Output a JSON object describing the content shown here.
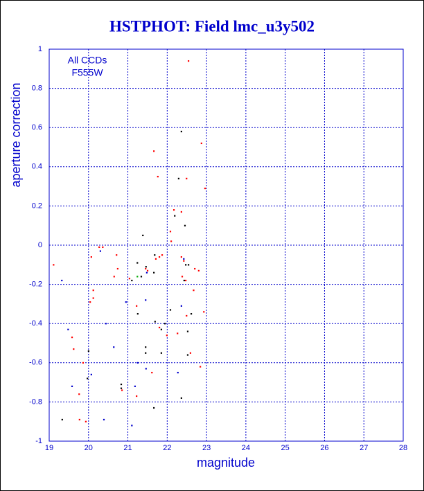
{
  "chart_data": {
    "type": "scatter",
    "title": "HSTPHOT: Field lmc_u3y502",
    "x_label": "magnitude",
    "y_label": "aperture correction",
    "annotations": [
      "All CCDs",
      "F555W"
    ],
    "xlim": [
      19,
      28
    ],
    "ylim": [
      -1,
      1
    ],
    "xticks": [
      19,
      20,
      21,
      22,
      23,
      24,
      25,
      26,
      27,
      28
    ],
    "yticks": [
      -1,
      -0.8,
      -0.6,
      -0.4,
      -0.2,
      0,
      0.2,
      0.4,
      0.6,
      0.8,
      1
    ],
    "grid": true,
    "series": [
      {
        "color": "#000000",
        "x": [
          22.36,
          22.29,
          22.19,
          21.38,
          22.45,
          21.24,
          21.46,
          21.68,
          21.66,
          22.47,
          22.54,
          22.43,
          21.34,
          21.1,
          22.08,
          22.61,
          21.25,
          21.69,
          21.94,
          21.85,
          22.52,
          21.45,
          20.0,
          21.45,
          21.85,
          22.52,
          19.97,
          20.83,
          20.83,
          22.36,
          21.66,
          19.33
        ],
        "y": [
          0.58,
          0.34,
          0.15,
          0.05,
          0.1,
          -0.09,
          -0.11,
          -0.05,
          -0.14,
          -0.1,
          -0.1,
          -0.18,
          -0.16,
          -0.18,
          -0.33,
          -0.35,
          -0.35,
          -0.39,
          -0.4,
          -0.43,
          -0.44,
          -0.52,
          -0.54,
          -0.55,
          -0.55,
          -0.56,
          -0.68,
          -0.71,
          -0.73,
          -0.78,
          -0.83,
          -0.89
        ]
      },
      {
        "color": "#ff0000",
        "x": [
          22.54,
          22.87,
          21.66,
          21.76,
          22.49,
          22.96,
          22.17,
          22.36,
          22.08,
          22.1,
          20.27,
          20.36,
          20.07,
          20.71,
          20.74,
          21.45,
          21.5,
          21.71,
          21.8,
          21.87,
          22.36,
          22.42,
          22.7,
          22.8,
          22.38,
          22.47,
          21.04,
          20.65,
          19.11,
          20.12,
          20.12,
          20.04,
          21.22,
          22.67,
          22.93,
          22.49,
          21.8,
          19.58,
          21.99,
          22.26,
          19.62,
          22.59,
          21.61,
          22.84,
          19.86,
          20.85,
          19.76,
          21.22,
          19.77,
          19.93
        ],
        "y": [
          0.94,
          0.52,
          0.48,
          0.35,
          0.34,
          0.29,
          0.18,
          0.17,
          0.07,
          0.02,
          -0.01,
          -0.01,
          -0.06,
          -0.05,
          -0.12,
          -0.12,
          -0.13,
          -0.07,
          -0.06,
          -0.05,
          -0.06,
          -0.08,
          -0.12,
          -0.13,
          -0.16,
          -0.18,
          -0.17,
          -0.16,
          -0.1,
          -0.23,
          -0.27,
          -0.29,
          -0.31,
          -0.23,
          -0.34,
          -0.36,
          -0.42,
          -0.47,
          -0.46,
          -0.45,
          -0.53,
          -0.55,
          -0.65,
          -0.62,
          -0.6,
          -0.74,
          -0.76,
          -0.77,
          -0.89,
          -0.9
        ]
      },
      {
        "color": "#0000cc",
        "x": [
          20.3,
          21.48,
          22.42,
          19.32,
          20.95,
          21.45,
          22.36,
          20.44,
          19.48,
          20.64,
          21.25,
          21.46,
          22.27,
          20.07,
          21.18,
          19.58,
          21.1,
          20.39
        ],
        "y": [
          -0.03,
          -0.14,
          -0.07,
          -0.18,
          -0.29,
          -0.28,
          -0.31,
          -0.4,
          -0.43,
          -0.52,
          -0.6,
          -0.63,
          -0.65,
          -0.66,
          -0.72,
          -0.72,
          -0.92,
          -0.89
        ]
      },
      {
        "color": "#00aa00",
        "x": [
          21.24
        ],
        "y": [
          -0.16
        ]
      }
    ]
  }
}
